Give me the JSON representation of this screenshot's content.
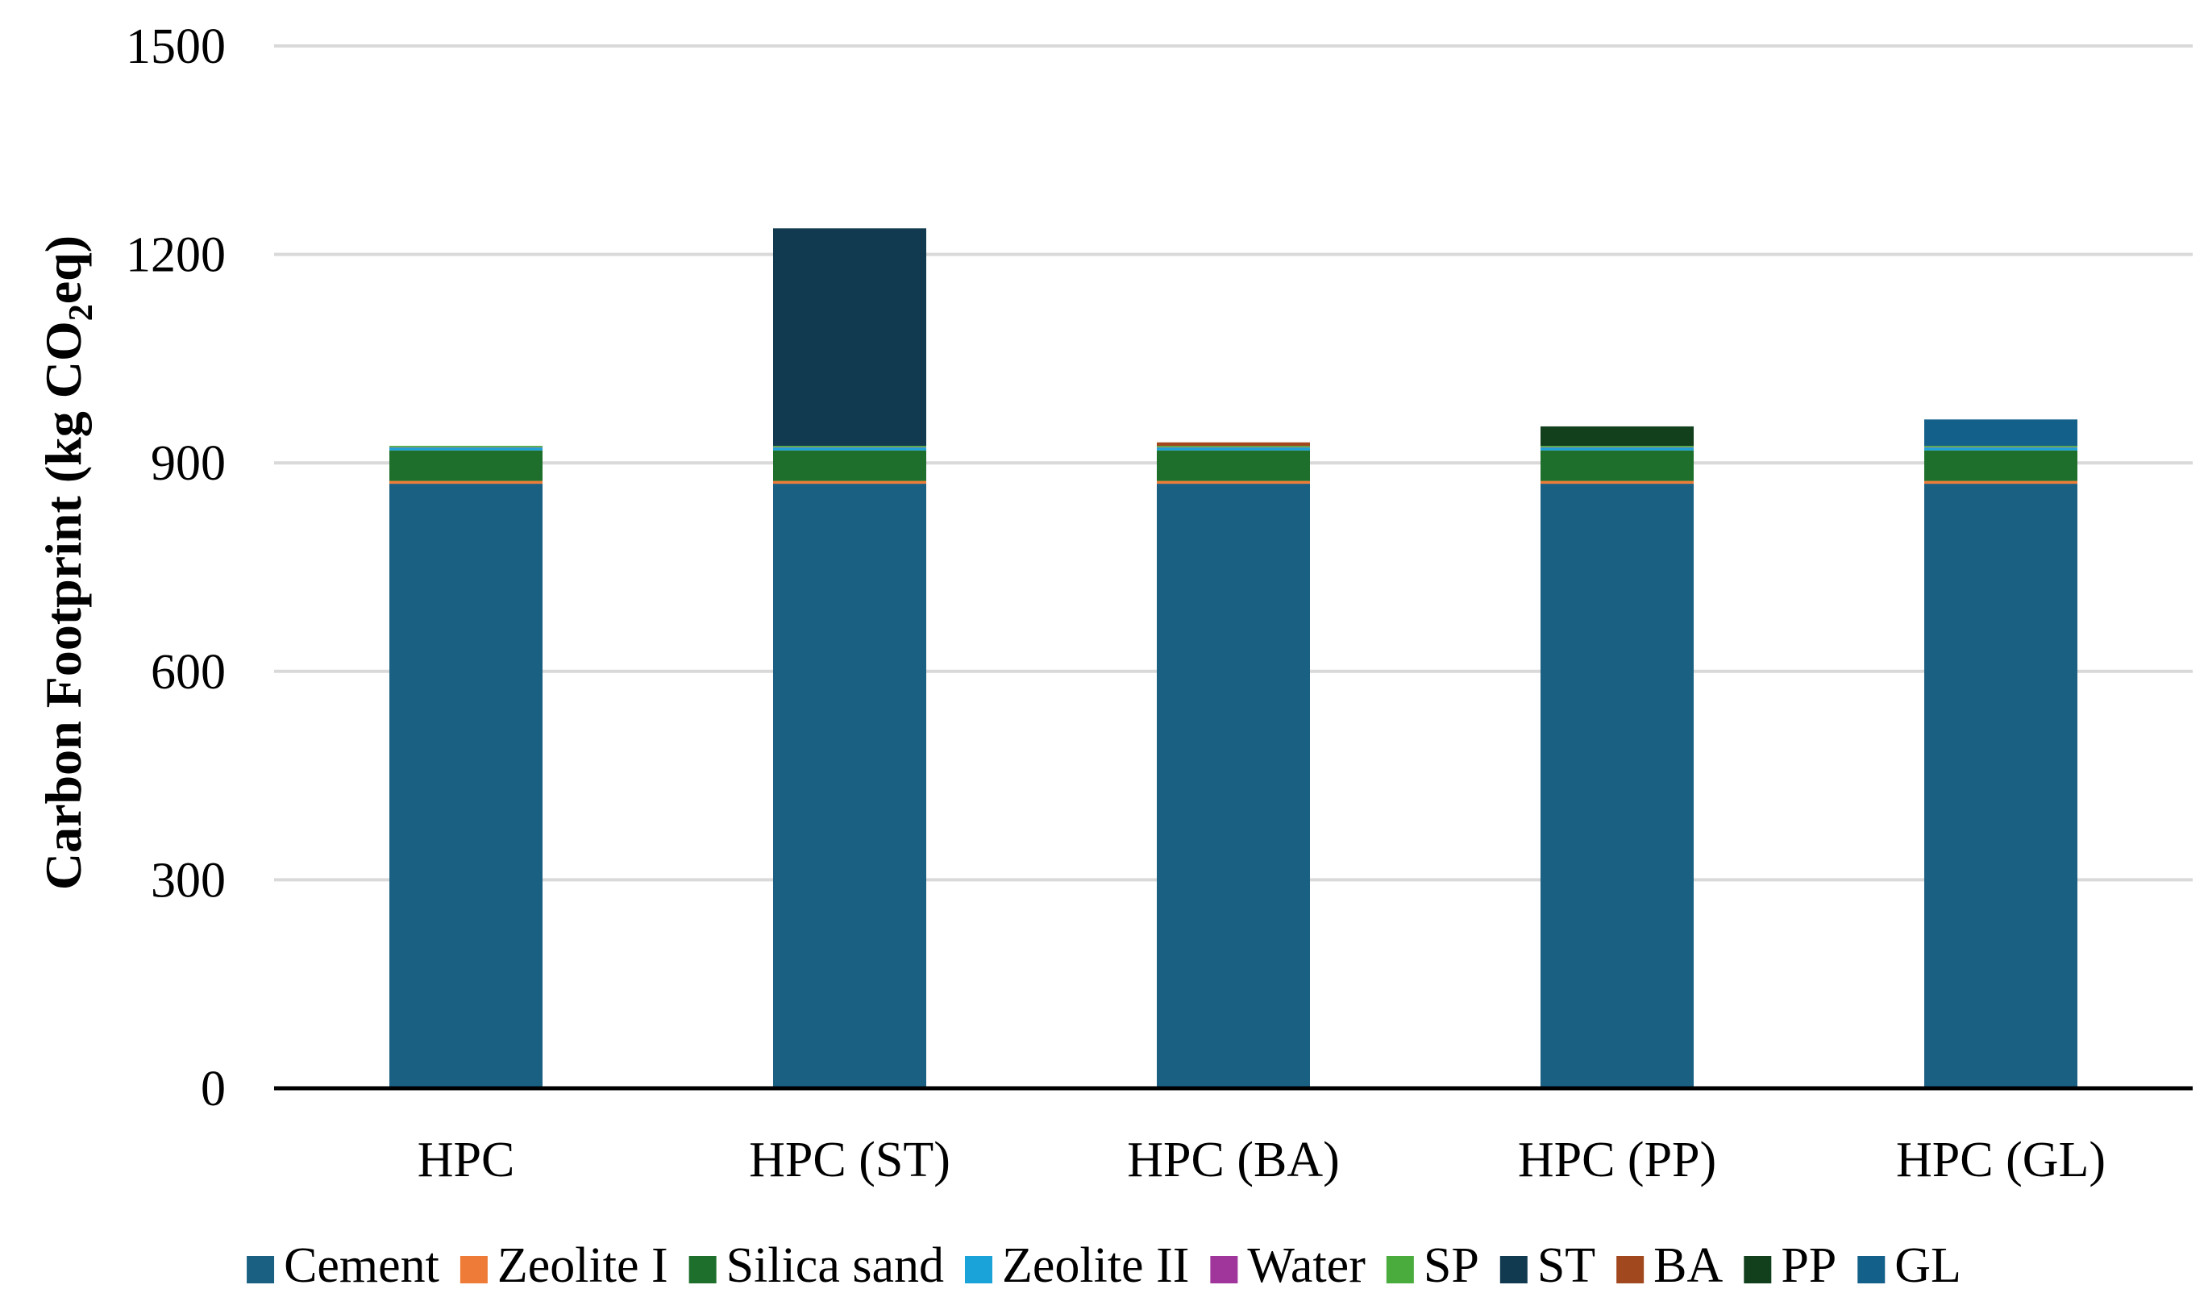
{
  "chart_data": {
    "type": "bar",
    "stacked": true,
    "title": "",
    "xlabel": "",
    "ylabel": {
      "prefix": "Carbon Footprint (kg CO",
      "subscript": "2",
      "suffix": "eq)"
    },
    "ylim": [
      0,
      1500
    ],
    "yticks": [
      0,
      300,
      600,
      900,
      1200,
      1500
    ],
    "grid": true,
    "legend_position": "bottom",
    "categories": [
      "HPC",
      "HPC (ST)",
      "HPC (BA)",
      "HPC (PP)",
      "HPC (GL)"
    ],
    "series": [
      {
        "name": "Cement",
        "color": "#1a6083",
        "values": [
          870,
          870,
          870,
          870,
          870
        ]
      },
      {
        "name": "Zeolite I",
        "color": "#ee7b37",
        "values": [
          4,
          4,
          4,
          4,
          4
        ]
      },
      {
        "name": "Silica sand",
        "color": "#1f6f2c",
        "values": [
          44,
          44,
          44,
          44,
          44
        ]
      },
      {
        "name": "Zeolite II",
        "color": "#1aa3d8",
        "values": [
          4,
          4,
          4,
          4,
          4
        ]
      },
      {
        "name": "Water",
        "color": "#a0359c",
        "values": [
          0.5,
          0.5,
          0.5,
          0.5,
          0.5
        ]
      },
      {
        "name": "SP",
        "color": "#4aac3c",
        "values": [
          2,
          2,
          2,
          2,
          2
        ]
      },
      {
        "name": "ST",
        "color": "#113a50",
        "values": [
          0,
          313,
          0,
          0,
          0
        ]
      },
      {
        "name": "BA",
        "color": "#a2481e",
        "values": [
          0,
          0,
          5,
          0,
          0
        ]
      },
      {
        "name": "PP",
        "color": "#123f1c",
        "values": [
          0,
          0,
          0,
          28,
          0
        ]
      },
      {
        "name": "GL",
        "color": "#13618a",
        "values": [
          0,
          0,
          0,
          0,
          38
        ]
      }
    ]
  }
}
